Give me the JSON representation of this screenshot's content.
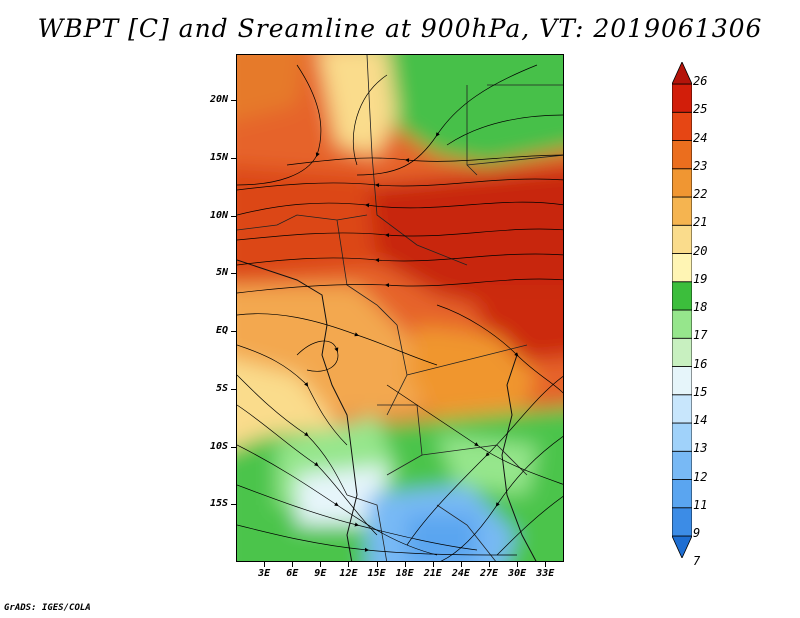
{
  "title": "WBPT [C] and Sreamline at 900hPa, VT: 2019061306",
  "footer": "GrADS: IGES/COLA",
  "map": {
    "lat_range": [
      -20,
      24
    ],
    "lon_range": [
      0,
      35
    ],
    "y_axis_labels": [
      {
        "text": "20N",
        "lat": 20
      },
      {
        "text": "15N",
        "lat": 15
      },
      {
        "text": "10N",
        "lat": 10
      },
      {
        "text": "5N",
        "lat": 5
      },
      {
        "text": "EQ",
        "lat": 0
      },
      {
        "text": "5S",
        "lat": -5
      },
      {
        "text": "10S",
        "lat": -10
      },
      {
        "text": "15S",
        "lat": -15
      }
    ],
    "x_axis_labels": [
      {
        "text": "3E",
        "lon": 3
      },
      {
        "text": "6E",
        "lon": 6
      },
      {
        "text": "9E",
        "lon": 9
      },
      {
        "text": "12E",
        "lon": 12
      },
      {
        "text": "15E",
        "lon": 15
      },
      {
        "text": "18E",
        "lon": 18
      },
      {
        "text": "21E",
        "lon": 21
      },
      {
        "text": "24E",
        "lon": 24
      },
      {
        "text": "27E",
        "lon": 27
      },
      {
        "text": "30E",
        "lon": 30
      },
      {
        "text": "33E",
        "lon": 33
      }
    ]
  },
  "colorbar": {
    "levels": [
      "7",
      "9",
      "11",
      "12",
      "13",
      "14",
      "15",
      "16",
      "17",
      "18",
      "19",
      "20",
      "21",
      "22",
      "23",
      "24",
      "25",
      "26"
    ],
    "colors": [
      "#1e6ed2",
      "#3c8ce6",
      "#5aa5f0",
      "#78b9f5",
      "#a0d2fa",
      "#c8e6fc",
      "#e6f5fa",
      "#c8f0c0",
      "#96e68c",
      "#3cbe3c",
      "#fff5b4",
      "#fadc8c",
      "#f5b450",
      "#f09632",
      "#eb6e1e",
      "#e64614",
      "#d21e0a",
      "#b4140a"
    ]
  }
}
